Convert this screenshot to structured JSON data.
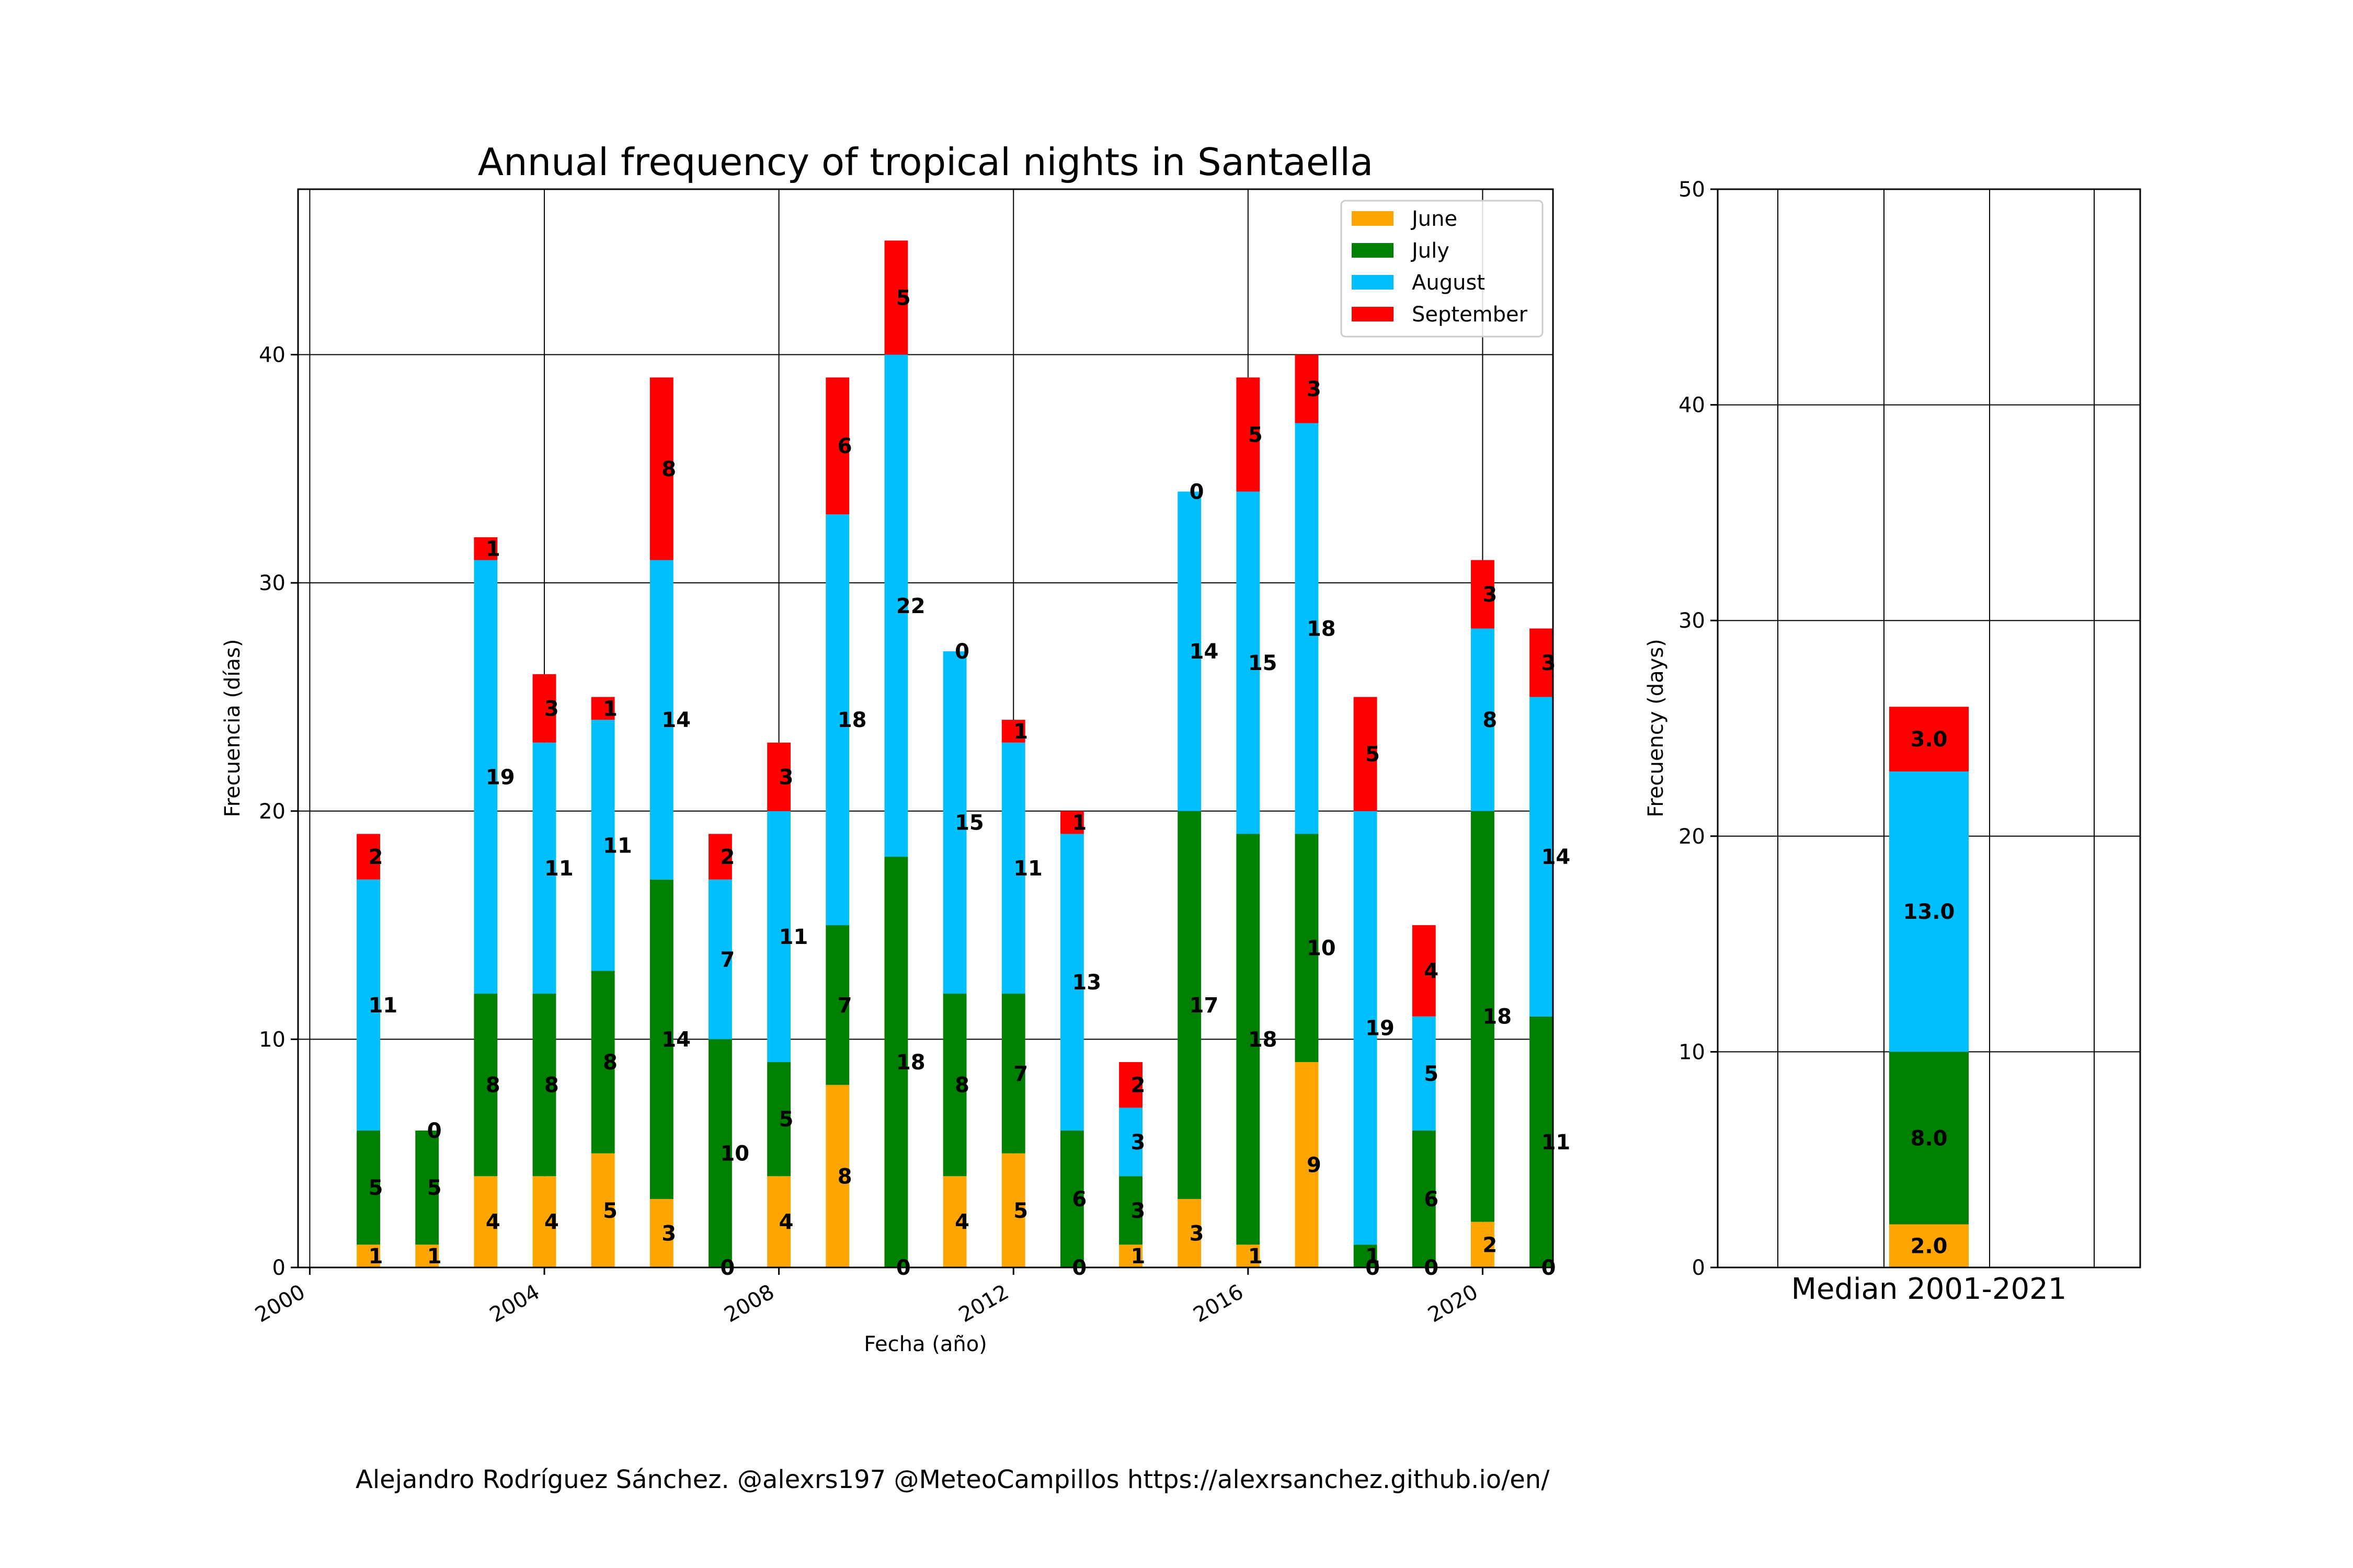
{
  "credit": "Alejandro Rodríguez Sánchez. @alexrs197 @MeteoCampillos   https://alexrsanchez.github.io/en/",
  "colors": {
    "June": "#FFA500",
    "July": "#008000",
    "August": "#00BFFF",
    "September": "#FF0000"
  },
  "chart_data": [
    {
      "type": "bar",
      "stacked": true,
      "title": "Annual frequency of tropical nights in Santaella",
      "xlabel": "Fecha (año)",
      "ylabel": "Frecuencia (días)",
      "xlim": [
        1999.8,
        2021.2
      ],
      "ylim": [
        0,
        47.25
      ],
      "xticks": [
        2000,
        2004,
        2008,
        2012,
        2016,
        2020
      ],
      "yticks": [
        0,
        10,
        20,
        30,
        40
      ],
      "grid": true,
      "legend": "top-right",
      "x": [
        2001,
        2002,
        2003,
        2004,
        2005,
        2006,
        2007,
        2008,
        2009,
        2010,
        2011,
        2012,
        2013,
        2014,
        2015,
        2016,
        2017,
        2018,
        2019,
        2020,
        2021
      ],
      "series": [
        {
          "name": "June",
          "color": "#FFA500",
          "values": [
            1,
            1,
            4,
            4,
            5,
            3,
            0,
            4,
            8,
            0,
            4,
            5,
            0,
            1,
            3,
            1,
            9,
            0,
            0,
            2,
            0
          ]
        },
        {
          "name": "July",
          "color": "#008000",
          "values": [
            5,
            5,
            8,
            8,
            8,
            14,
            10,
            5,
            7,
            18,
            8,
            7,
            6,
            3,
            17,
            18,
            10,
            1,
            6,
            18,
            11
          ]
        },
        {
          "name": "August",
          "color": "#00BFFF",
          "values": [
            11,
            0,
            19,
            11,
            11,
            14,
            7,
            11,
            18,
            22,
            15,
            11,
            13,
            3,
            14,
            15,
            18,
            19,
            5,
            8,
            14
          ]
        },
        {
          "name": "September",
          "color": "#FF0000",
          "values": [
            2,
            0,
            1,
            3,
            1,
            8,
            2,
            3,
            6,
            5,
            0,
            1,
            1,
            2,
            0,
            5,
            3,
            5,
            4,
            3,
            3
          ]
        }
      ]
    },
    {
      "type": "bar",
      "stacked": true,
      "categories": [
        "Median 2001-2021"
      ],
      "ylabel": "Frecuency (days)",
      "ylim": [
        0,
        50
      ],
      "yticks": [
        0,
        10,
        20,
        30,
        40,
        50
      ],
      "grid": true,
      "series": [
        {
          "name": "June",
          "color": "#FFA500",
          "values": [
            2.0
          ]
        },
        {
          "name": "July",
          "color": "#008000",
          "values": [
            8.0
          ]
        },
        {
          "name": "August",
          "color": "#00BFFF",
          "values": [
            13.0
          ]
        },
        {
          "name": "September",
          "color": "#FF0000",
          "values": [
            3.0
          ]
        }
      ]
    }
  ]
}
